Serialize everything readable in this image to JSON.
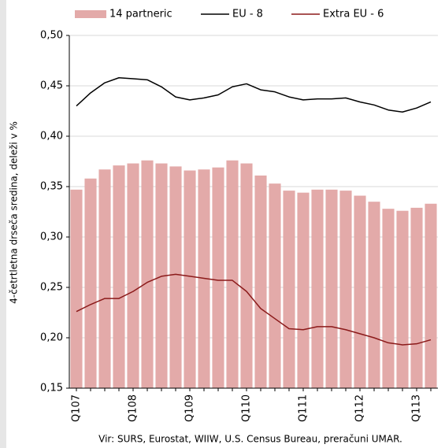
{
  "chart_data": {
    "type": "bar-line",
    "y_label": "4-četrtletna drseča sredina, deleži v %",
    "source": "Vir: SURS, Eurostat, WIIW, U.S. Census Bureau, preračuni UMAR.",
    "categories": [
      "Q107",
      null,
      null,
      null,
      "Q108",
      null,
      null,
      null,
      "Q109",
      null,
      null,
      null,
      "Q110",
      null,
      null,
      null,
      "Q111",
      null,
      null,
      null,
      "Q112",
      null,
      null,
      null,
      "Q113",
      null
    ],
    "series": [
      {
        "name": "14 partneric",
        "type": "bar",
        "color": "#e3aaa9",
        "values": [
          0.347,
          0.358,
          0.367,
          0.371,
          0.373,
          0.376,
          0.373,
          0.37,
          0.366,
          0.367,
          0.369,
          0.376,
          0.373,
          0.361,
          0.353,
          0.346,
          0.344,
          0.347,
          0.347,
          0.346,
          0.341,
          0.335,
          0.328,
          0.326,
          0.329,
          0.333
        ]
      },
      {
        "name": "EU - 8",
        "type": "line",
        "color": "#000000",
        "values": [
          0.43,
          0.443,
          0.453,
          0.458,
          0.457,
          0.456,
          0.449,
          0.439,
          0.436,
          0.438,
          0.441,
          0.449,
          0.452,
          0.446,
          0.444,
          0.439,
          0.436,
          0.437,
          0.437,
          0.438,
          0.434,
          0.431,
          0.426,
          0.424,
          0.428,
          0.434
        ]
      },
      {
        "name": "Extra EU - 6",
        "type": "line",
        "color": "#8b1a1a",
        "values": [
          0.226,
          0.233,
          0.239,
          0.239,
          0.246,
          0.255,
          0.261,
          0.263,
          0.261,
          0.259,
          0.257,
          0.257,
          0.246,
          0.229,
          0.219,
          0.209,
          0.208,
          0.211,
          0.211,
          0.208,
          0.204,
          0.2,
          0.195,
          0.193,
          0.194,
          0.198
        ]
      }
    ],
    "ylim": [
      0.15,
      0.5
    ],
    "yticks": [
      {
        "value": 0.15,
        "label": "0,15"
      },
      {
        "value": 0.2,
        "label": "0,20"
      },
      {
        "value": 0.25,
        "label": "0,25"
      },
      {
        "value": 0.3,
        "label": "0,30"
      },
      {
        "value": 0.35,
        "label": "0,35"
      },
      {
        "value": 0.4,
        "label": "0,40"
      },
      {
        "value": 0.45,
        "label": "0,45"
      },
      {
        "value": 0.5,
        "label": "0,50"
      }
    ],
    "grid": true
  }
}
